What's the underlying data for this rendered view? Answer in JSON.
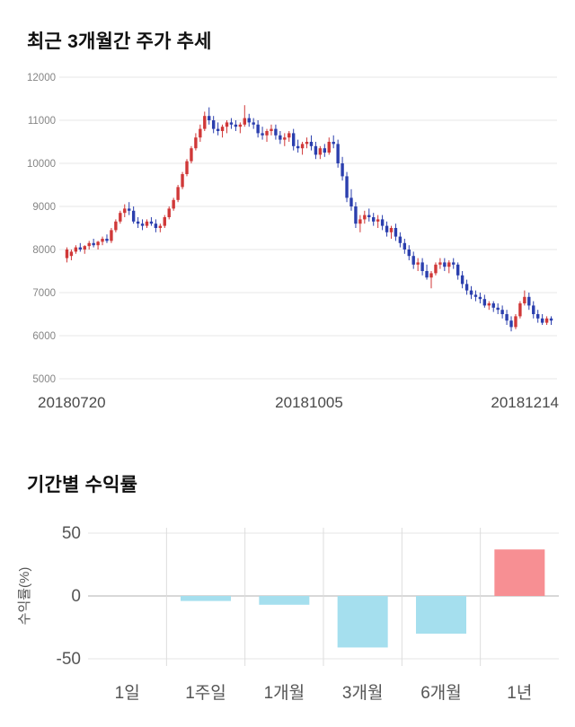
{
  "chart_data": [
    {
      "type": "candlestick",
      "title": "최근 3개월간 주가 추세",
      "ylim": [
        5000,
        12000
      ],
      "yticks": [
        5000,
        6000,
        7000,
        8000,
        9000,
        10000,
        11000,
        12000
      ],
      "xtick_labels": [
        "20180720",
        "20181005",
        "20181214"
      ],
      "up_color": "#d03838",
      "down_color": "#2b3fae",
      "grid": true,
      "ohlc": [
        [
          7800,
          8050,
          7700,
          8000
        ],
        [
          7850,
          8000,
          7750,
          7950
        ],
        [
          7950,
          8100,
          7900,
          8050
        ],
        [
          8050,
          8150,
          7950,
          8000
        ],
        [
          8000,
          8100,
          7900,
          8080
        ],
        [
          8080,
          8200,
          8000,
          8150
        ],
        [
          8150,
          8250,
          8050,
          8100
        ],
        [
          8100,
          8200,
          8000,
          8180
        ],
        [
          8180,
          8300,
          8100,
          8250
        ],
        [
          8250,
          8350,
          8150,
          8200
        ],
        [
          8200,
          8500,
          8150,
          8450
        ],
        [
          8450,
          8700,
          8400,
          8650
        ],
        [
          8650,
          8900,
          8600,
          8850
        ],
        [
          8850,
          9050,
          8750,
          8950
        ],
        [
          8950,
          9100,
          8800,
          8900
        ],
        [
          8900,
          9000,
          8600,
          8650
        ],
        [
          8650,
          8750,
          8500,
          8600
        ],
        [
          8600,
          8700,
          8450,
          8550
        ],
        [
          8550,
          8700,
          8500,
          8650
        ],
        [
          8650,
          8750,
          8550,
          8600
        ],
        [
          8600,
          8700,
          8400,
          8500
        ],
        [
          8500,
          8600,
          8400,
          8550
        ],
        [
          8550,
          8800,
          8500,
          8750
        ],
        [
          8750,
          9000,
          8700,
          8950
        ],
        [
          8950,
          9200,
          8900,
          9150
        ],
        [
          9150,
          9500,
          9100,
          9450
        ],
        [
          9450,
          9800,
          9400,
          9750
        ],
        [
          9750,
          10100,
          9700,
          10050
        ],
        [
          10050,
          10400,
          10000,
          10350
        ],
        [
          10350,
          10700,
          10300,
          10600
        ],
        [
          10600,
          10900,
          10500,
          10800
        ],
        [
          10800,
          11200,
          10750,
          11100
        ],
        [
          11100,
          11300,
          10900,
          11000
        ],
        [
          11000,
          11100,
          10700,
          10800
        ],
        [
          10800,
          10950,
          10650,
          10750
        ],
        [
          10750,
          10900,
          10600,
          10850
        ],
        [
          10850,
          11000,
          10700,
          10950
        ],
        [
          10950,
          11050,
          10800,
          10900
        ],
        [
          10900,
          11000,
          10750,
          10850
        ],
        [
          10850,
          10950,
          10700,
          10900
        ],
        [
          10900,
          11350,
          10850,
          11050
        ],
        [
          11050,
          11150,
          10850,
          10950
        ],
        [
          10950,
          11050,
          10800,
          10900
        ],
        [
          10900,
          11000,
          10600,
          10700
        ],
        [
          10700,
          10850,
          10550,
          10650
        ],
        [
          10650,
          10800,
          10500,
          10750
        ],
        [
          10750,
          10900,
          10650,
          10800
        ],
        [
          10800,
          10900,
          10550,
          10650
        ],
        [
          10650,
          10750,
          10450,
          10550
        ],
        [
          10550,
          10700,
          10400,
          10600
        ],
        [
          10600,
          10750,
          10500,
          10700
        ],
        [
          10700,
          10800,
          10300,
          10400
        ],
        [
          10400,
          10550,
          10250,
          10350
        ],
        [
          10350,
          10500,
          10200,
          10450
        ],
        [
          10450,
          10600,
          10350,
          10500
        ],
        [
          10500,
          10650,
          10300,
          10400
        ],
        [
          10400,
          10500,
          10100,
          10200
        ],
        [
          10200,
          10400,
          10100,
          10350
        ],
        [
          10350,
          10450,
          10150,
          10250
        ],
        [
          10250,
          10600,
          10200,
          10500
        ],
        [
          10500,
          10650,
          10350,
          10450
        ],
        [
          10450,
          10550,
          9900,
          10000
        ],
        [
          10000,
          10150,
          9600,
          9700
        ],
        [
          9700,
          9800,
          9100,
          9200
        ],
        [
          9200,
          9400,
          8900,
          9000
        ],
        [
          9000,
          9100,
          8500,
          8600
        ],
        [
          8600,
          8800,
          8400,
          8700
        ],
        [
          8700,
          8900,
          8600,
          8800
        ],
        [
          8800,
          8950,
          8650,
          8750
        ],
        [
          8750,
          8850,
          8550,
          8650
        ],
        [
          8650,
          8800,
          8500,
          8700
        ],
        [
          8700,
          8800,
          8450,
          8550
        ],
        [
          8550,
          8650,
          8300,
          8400
        ],
        [
          8400,
          8550,
          8250,
          8500
        ],
        [
          8500,
          8600,
          8200,
          8300
        ],
        [
          8300,
          8400,
          8050,
          8150
        ],
        [
          8150,
          8250,
          7900,
          8000
        ],
        [
          8000,
          8100,
          7750,
          7850
        ],
        [
          7850,
          7950,
          7550,
          7650
        ],
        [
          7650,
          7800,
          7500,
          7700
        ],
        [
          7700,
          7800,
          7400,
          7500
        ],
        [
          7500,
          7650,
          7300,
          7350
        ],
        [
          7350,
          7500,
          7100,
          7450
        ],
        [
          7450,
          7700,
          7400,
          7650
        ],
        [
          7650,
          7800,
          7550,
          7700
        ],
        [
          7700,
          7800,
          7500,
          7600
        ],
        [
          7600,
          7750,
          7450,
          7700
        ],
        [
          7700,
          7800,
          7550,
          7650
        ],
        [
          7650,
          7700,
          7300,
          7400
        ],
        [
          7400,
          7500,
          7100,
          7200
        ],
        [
          7200,
          7300,
          6950,
          7050
        ],
        [
          7050,
          7150,
          6850,
          6950
        ],
        [
          6950,
          7050,
          6800,
          6900
        ],
        [
          6900,
          7000,
          6750,
          6850
        ],
        [
          6850,
          6950,
          6650,
          6700
        ],
        [
          6700,
          6800,
          6600,
          6750
        ],
        [
          6750,
          6800,
          6550,
          6650
        ],
        [
          6650,
          6750,
          6500,
          6600
        ],
        [
          6600,
          6700,
          6400,
          6500
        ],
        [
          6500,
          6600,
          6250,
          6350
        ],
        [
          6350,
          6450,
          6100,
          6200
        ],
        [
          6200,
          6500,
          6150,
          6450
        ],
        [
          6450,
          6800,
          6400,
          6750
        ],
        [
          6750,
          7050,
          6700,
          6900
        ],
        [
          6900,
          7000,
          6600,
          6700
        ],
        [
          6700,
          6800,
          6400,
          6500
        ],
        [
          6500,
          6600,
          6300,
          6400
        ],
        [
          6400,
          6500,
          6250,
          6300
        ],
        [
          6300,
          6450,
          6250,
          6400
        ],
        [
          6400,
          6450,
          6250,
          6350
        ]
      ]
    },
    {
      "type": "bar",
      "title": "기간별 수익률",
      "categories": [
        "1일",
        "1주일",
        "1개월",
        "3개월",
        "6개월",
        "1년"
      ],
      "values": [
        0,
        -4,
        -7,
        -41,
        -30,
        37
      ],
      "ylabel": "수익률(%)",
      "ylim": [
        -50,
        50
      ],
      "yticks": [
        50,
        0,
        -50
      ],
      "positive_color": "#f78f93",
      "negative_color": "#a5dfee",
      "grid": "vertical",
      "legend": "none"
    }
  ]
}
